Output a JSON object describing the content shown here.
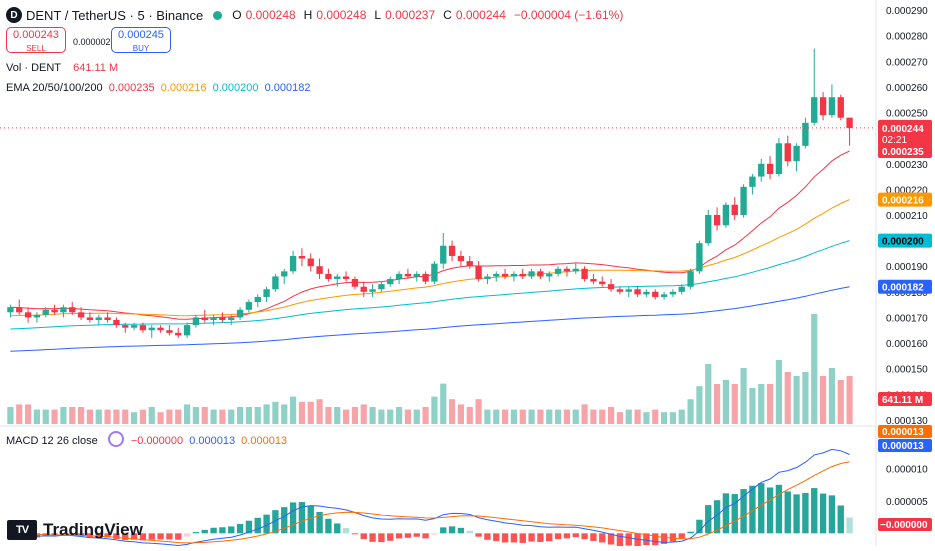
{
  "header": {
    "symbol_title": "DENT / TetherUS · 5 · Binance",
    "logo_glyph": "D",
    "o_label": "O",
    "o_value": "0.000248",
    "h_label": "H",
    "h_value": "0.000248",
    "l_label": "L",
    "l_value": "0.000237",
    "c_label": "C",
    "c_value": "0.000244",
    "change": "−0.000004 (−1.61%)"
  },
  "trade": {
    "sell_price": "0.000243",
    "sell_label": "SELL",
    "spread": "0.000002",
    "buy_price": "0.000245",
    "buy_label": "BUY"
  },
  "indicators": {
    "vol_label": "Vol · DENT",
    "vol_value": "641.11 M",
    "ema_label": "EMA 20/50/100/200",
    "ema20": "0.000235",
    "ema50": "0.000216",
    "ema100": "0.000200",
    "ema200": "0.000182",
    "macd_label": "MACD 12 26 close",
    "macd_hist": "−0.000000",
    "macd_line": "0.000013",
    "macd_signal": "0.000013"
  },
  "price_axis": {
    "ticks": [
      "0.000290",
      "0.000280",
      "0.000270",
      "0.000260",
      "0.000250",
      "0.000240",
      "0.000230",
      "0.000220",
      "0.000210",
      "0.000200",
      "0.000190",
      "0.000180",
      "0.000170",
      "0.000160",
      "0.000150",
      "0.000140",
      "0.000130"
    ],
    "last_price": "0.000244",
    "countdown": "02:21",
    "ema20_tag": "0.000235",
    "ema50_tag": "0.000216",
    "ema100_tag": "0.000200",
    "ema200_tag": "0.000182",
    "volume_tag": "641.11 M"
  },
  "macd_axis": {
    "ticks": [
      "0.000010",
      "0.000005"
    ],
    "signal_tag": "0.000013",
    "macd_tag": "0.000013",
    "hist_tag": "−0.000000"
  },
  "colors": {
    "up": "#22ab94",
    "down": "#f23645",
    "up_vol": "#8fd1c6",
    "down_vol": "#f7a4a9",
    "ema20": "#f23645",
    "ema50": "#ff9800",
    "ema100": "#00bcd4",
    "ema200": "#2962ff",
    "macd": "#2962ff",
    "signal": "#ff6d00"
  },
  "branding": {
    "name": "TradingView",
    "mark": "TV"
  },
  "chart_data": [
    {
      "type": "candlestick",
      "interval": "5m",
      "series_ohlc_note": "Approximate 5-minute candles read from the chart (price in USDT)",
      "ohlc": [
        [
          0.000172,
          0.000175,
          0.00017,
          0.000174
        ],
        [
          0.000174,
          0.000177,
          0.000171,
          0.000172
        ],
        [
          0.000172,
          0.000174,
          0.000168,
          0.00017
        ],
        [
          0.00017,
          0.000172,
          0.000168,
          0.000171
        ],
        [
          0.000171,
          0.000174,
          0.00017,
          0.000173
        ],
        [
          0.000173,
          0.000175,
          0.000171,
          0.000172
        ],
        [
          0.000172,
          0.000175,
          0.00017,
          0.000174
        ],
        [
          0.000174,
          0.000176,
          0.000171,
          0.000172
        ],
        [
          0.000172,
          0.000174,
          0.000169,
          0.00017
        ],
        [
          0.00017,
          0.000172,
          0.000168,
          0.000169
        ],
        [
          0.000169,
          0.000171,
          0.000167,
          0.00017
        ],
        [
          0.00017,
          0.000172,
          0.000168,
          0.000169
        ],
        [
          0.000169,
          0.00017,
          0.000166,
          0.000167
        ],
        [
          0.000167,
          0.000168,
          0.000164,
          0.000166
        ],
        [
          0.000166,
          0.000168,
          0.000165,
          0.000167
        ],
        [
          0.000167,
          0.000168,
          0.000164,
          0.000165
        ],
        [
          0.000165,
          0.000167,
          0.000162,
          0.000166
        ],
        [
          0.000166,
          0.000167,
          0.000164,
          0.000165
        ],
        [
          0.000165,
          0.000167,
          0.000163,
          0.000164
        ],
        [
          0.000164,
          0.000166,
          0.000162,
          0.000163
        ],
        [
          0.000163,
          0.000168,
          0.000162,
          0.000167
        ],
        [
          0.000167,
          0.000171,
          0.000166,
          0.00017
        ],
        [
          0.00017,
          0.000173,
          0.000168,
          0.000169
        ],
        [
          0.000169,
          0.000171,
          0.000167,
          0.00017
        ],
        [
          0.00017,
          0.000172,
          0.000168,
          0.000169
        ],
        [
          0.000169,
          0.000171,
          0.000167,
          0.00017
        ],
        [
          0.00017,
          0.000174,
          0.000169,
          0.000173
        ],
        [
          0.000173,
          0.000177,
          0.000172,
          0.000176
        ],
        [
          0.000176,
          0.000179,
          0.000174,
          0.000178
        ],
        [
          0.000178,
          0.000182,
          0.000176,
          0.000181
        ],
        [
          0.000181,
          0.000187,
          0.00018,
          0.000186
        ],
        [
          0.000186,
          0.000189,
          0.000183,
          0.000188
        ],
        [
          0.000188,
          0.000196,
          0.000187,
          0.000194
        ],
        [
          0.000194,
          0.000197,
          0.00019,
          0.000193
        ],
        [
          0.000193,
          0.000195,
          0.000188,
          0.00019
        ],
        [
          0.00019,
          0.000193,
          0.000185,
          0.000187
        ],
        [
          0.000187,
          0.000189,
          0.000184,
          0.000185
        ],
        [
          0.000185,
          0.000187,
          0.000182,
          0.000186
        ],
        [
          0.000186,
          0.000188,
          0.000184,
          0.000185
        ],
        [
          0.000185,
          0.000186,
          0.000181,
          0.000182
        ],
        [
          0.000182,
          0.000184,
          0.000178,
          0.00018
        ],
        [
          0.00018,
          0.000183,
          0.000178,
          0.000181
        ],
        [
          0.000181,
          0.000184,
          0.00018,
          0.000183
        ],
        [
          0.000183,
          0.000186,
          0.000182,
          0.000185
        ],
        [
          0.000185,
          0.000188,
          0.000183,
          0.000187
        ],
        [
          0.000187,
          0.000189,
          0.000185,
          0.000186
        ],
        [
          0.000186,
          0.000188,
          0.000184,
          0.000187
        ],
        [
          0.000187,
          0.000188,
          0.000183,
          0.000184
        ],
        [
          0.000184,
          0.000192,
          0.000183,
          0.000191
        ],
        [
          0.000191,
          0.000203,
          0.000189,
          0.000198
        ],
        [
          0.000198,
          0.0002,
          0.000192,
          0.000194
        ],
        [
          0.000194,
          0.000196,
          0.00019,
          0.000192
        ],
        [
          0.000192,
          0.000194,
          0.000189,
          0.00019
        ],
        [
          0.00019,
          0.000192,
          0.000184,
          0.000185
        ],
        [
          0.000185,
          0.000187,
          0.000183,
          0.000186
        ],
        [
          0.000186,
          0.000188,
          0.000184,
          0.000187
        ],
        [
          0.000187,
          0.000189,
          0.000185,
          0.000186
        ],
        [
          0.000186,
          0.000188,
          0.000184,
          0.000187
        ],
        [
          0.000187,
          0.000189,
          0.000185,
          0.000186
        ],
        [
          0.000186,
          0.000189,
          0.000185,
          0.000188
        ],
        [
          0.000188,
          0.000189,
          0.000185,
          0.000186
        ],
        [
          0.000186,
          0.000188,
          0.000184,
          0.000187
        ],
        [
          0.000187,
          0.00019,
          0.000186,
          0.000189
        ],
        [
          0.000189,
          0.00019,
          0.000186,
          0.000188
        ],
        [
          0.000188,
          0.000191,
          0.000187,
          0.000189
        ],
        [
          0.000189,
          0.00019,
          0.000184,
          0.000185
        ],
        [
          0.000185,
          0.000187,
          0.000183,
          0.000184
        ],
        [
          0.000184,
          0.000186,
          0.000182,
          0.000183
        ],
        [
          0.000183,
          0.000185,
          0.00018,
          0.000181
        ],
        [
          0.000181,
          0.000182,
          0.000179,
          0.00018
        ],
        [
          0.00018,
          0.000182,
          0.000178,
          0.000181
        ],
        [
          0.000181,
          0.000182,
          0.000178,
          0.000179
        ],
        [
          0.000179,
          0.000181,
          0.000178,
          0.00018
        ],
        [
          0.00018,
          0.000181,
          0.000177,
          0.000178
        ],
        [
          0.000178,
          0.00018,
          0.000177,
          0.000179
        ],
        [
          0.000179,
          0.000181,
          0.000178,
          0.00018
        ],
        [
          0.00018,
          0.000183,
          0.000179,
          0.000182
        ],
        [
          0.000182,
          0.000189,
          0.000181,
          0.000188
        ],
        [
          0.000188,
          0.0002,
          0.000187,
          0.000199
        ],
        [
          0.000199,
          0.000212,
          0.000198,
          0.00021
        ],
        [
          0.00021,
          0.000213,
          0.000204,
          0.000206
        ],
        [
          0.000206,
          0.000215,
          0.000205,
          0.000214
        ],
        [
          0.000214,
          0.000217,
          0.000208,
          0.00021
        ],
        [
          0.00021,
          0.000222,
          0.000209,
          0.000221
        ],
        [
          0.000221,
          0.000226,
          0.000218,
          0.000225
        ],
        [
          0.000225,
          0.000232,
          0.000223,
          0.00023
        ],
        [
          0.00023,
          0.000233,
          0.000224,
          0.000226
        ],
        [
          0.000226,
          0.00024,
          0.000225,
          0.000238
        ],
        [
          0.000238,
          0.000241,
          0.000229,
          0.000231
        ],
        [
          0.000231,
          0.000238,
          0.000227,
          0.000237
        ],
        [
          0.000237,
          0.000248,
          0.000236,
          0.000246
        ],
        [
          0.000246,
          0.000275,
          0.000245,
          0.000256
        ],
        [
          0.000256,
          0.000258,
          0.000247,
          0.000249
        ],
        [
          0.000249,
          0.000261,
          0.000248,
          0.000256
        ],
        [
          0.000256,
          0.000257,
          0.000247,
          0.000248
        ],
        [
          0.000248,
          0.000248,
          0.000237,
          0.000244
        ]
      ],
      "ema20_end": 0.000235,
      "ema50_end": 0.000216,
      "ema100_end": 0.0002,
      "ema200_end": 0.000182,
      "ylim": [
        0.000128,
        0.000292
      ]
    },
    {
      "type": "bar",
      "name": "Volume",
      "last_value": "641.11 M"
    },
    {
      "type": "line",
      "name": "MACD 12 26 close",
      "ylim": [
        -1.5e-06,
        1.6e-05
      ]
    }
  ]
}
